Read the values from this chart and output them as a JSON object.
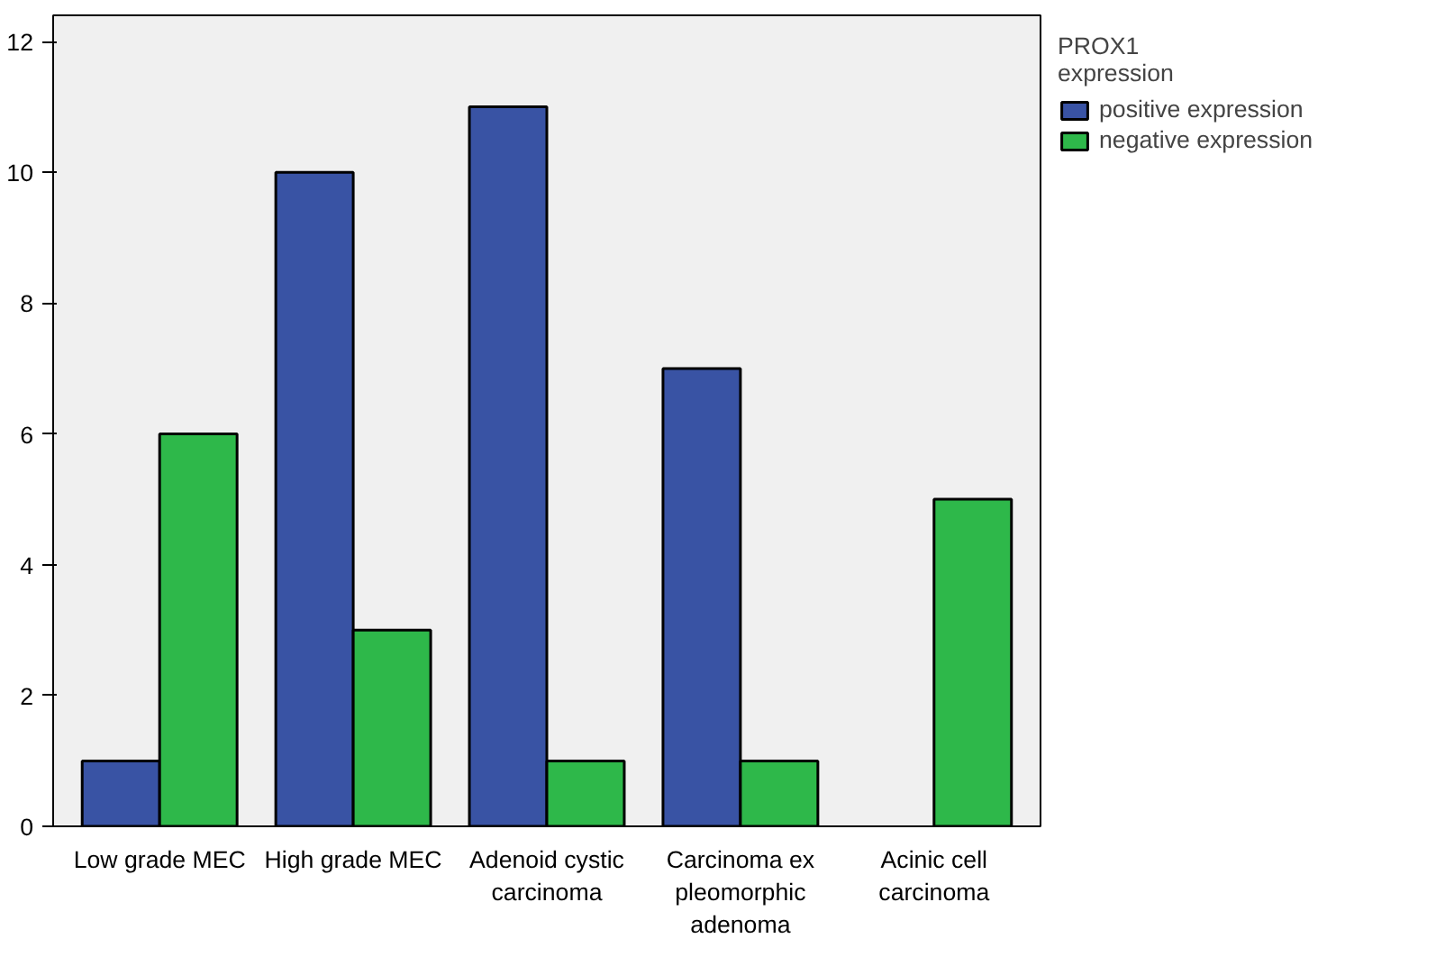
{
  "chart_data": {
    "type": "bar",
    "legend_title": "PROX1 expression",
    "categories": [
      "Low grade MEC",
      "High grade MEC",
      "Adenoid cystic carcinoma",
      "Carcinoma ex pleomorphic adenoma",
      "Acinic cell carcinoma"
    ],
    "series": [
      {
        "name": "positive expression",
        "color": "#3953a4",
        "values": [
          1,
          10,
          11,
          7,
          0
        ]
      },
      {
        "name": "negative expression",
        "color": "#2eb84a",
        "values": [
          6,
          3,
          1,
          1,
          5
        ]
      }
    ],
    "ylim": [
      0,
      12.4
    ],
    "yticks": [
      0,
      2,
      4,
      6,
      8,
      10,
      12
    ],
    "grid": false,
    "legend": "top right"
  }
}
